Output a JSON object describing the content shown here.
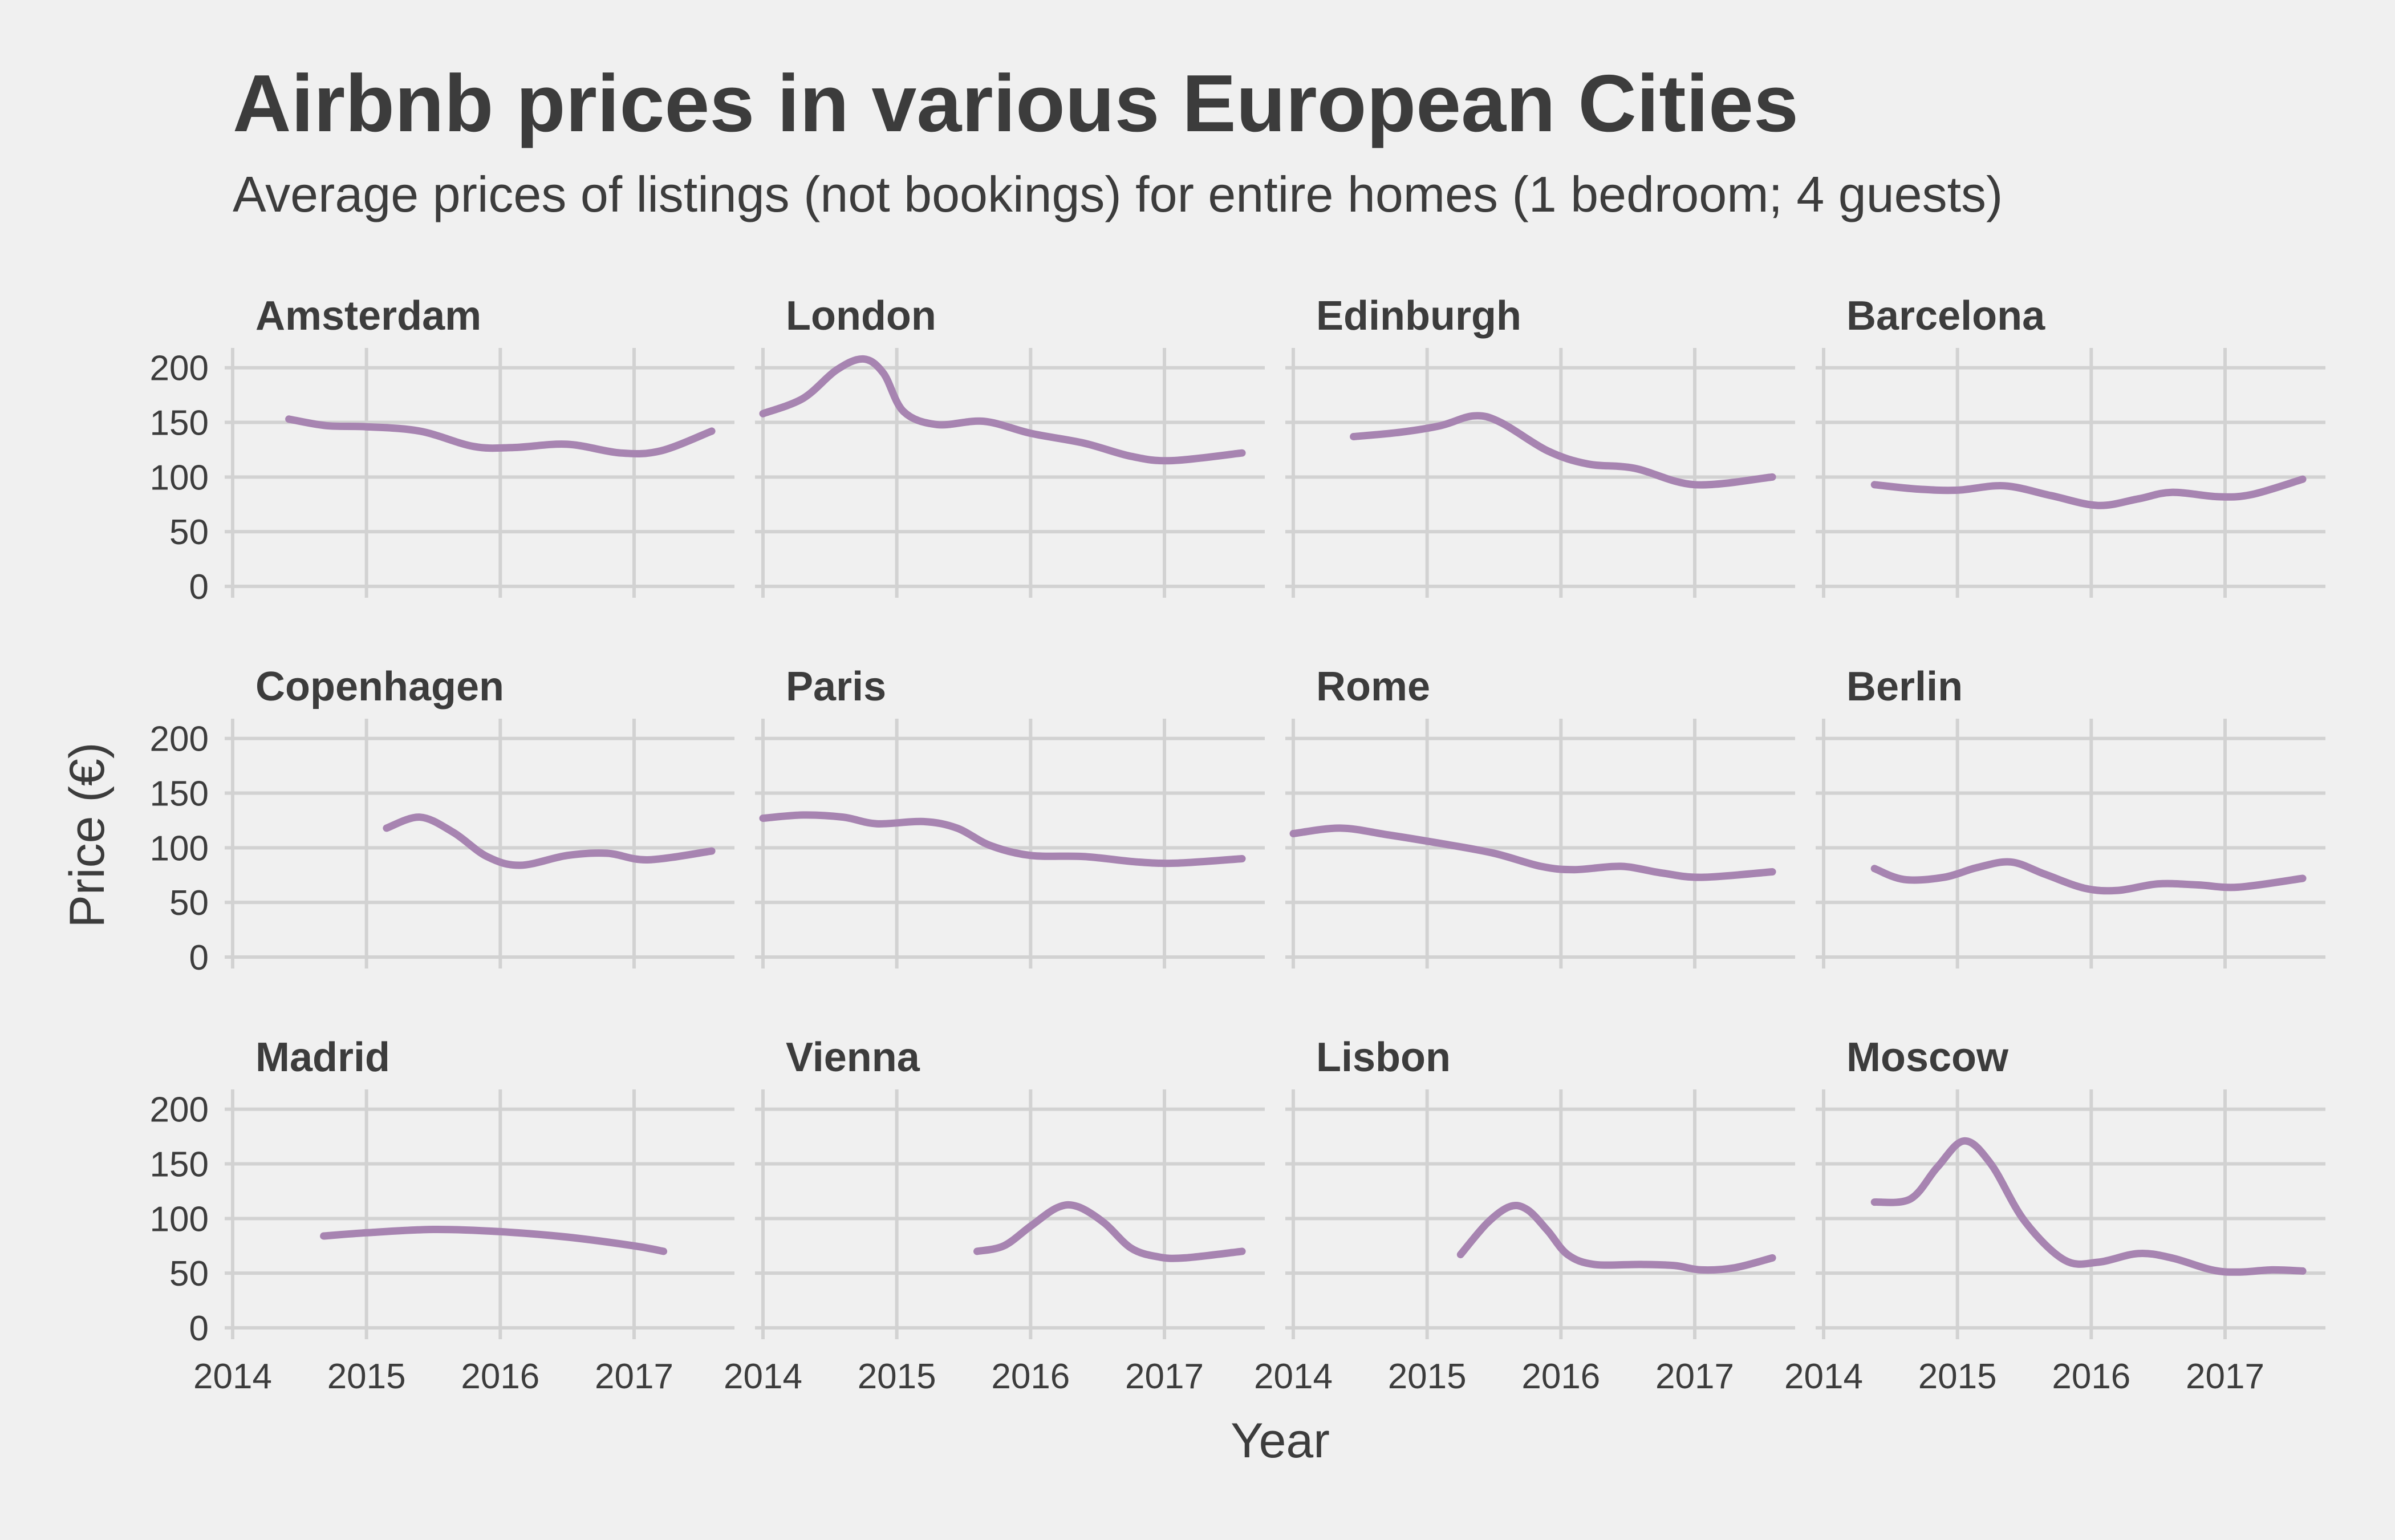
{
  "chart_data": {
    "type": "line",
    "title": "Airbnb prices in various European Cities",
    "subtitle": "Average prices of listings (not bookings) for entire homes (1 bedroom; 4 guests)",
    "xlabel": "Year",
    "ylabel": "Price (€)",
    "xlim": [
      2014,
      2017.75
    ],
    "ylim": [
      0,
      215
    ],
    "x_ticks": [
      2014,
      2015,
      2016,
      2017
    ],
    "y_ticks": [
      0,
      50,
      100,
      150,
      200
    ],
    "grid": true,
    "line_color": "#a784b1",
    "facets": [
      {
        "name": "Amsterdam",
        "x": [
          2014.42,
          2014.7,
          2015.0,
          2015.4,
          2015.8,
          2016.1,
          2016.5,
          2016.9,
          2017.2,
          2017.58
        ],
        "y": [
          153,
          147,
          146,
          142,
          128,
          127,
          130,
          122,
          124,
          142
        ]
      },
      {
        "name": "London",
        "x": [
          2014.0,
          2014.3,
          2014.55,
          2014.75,
          2014.9,
          2015.05,
          2015.3,
          2015.65,
          2016.0,
          2016.4,
          2016.75,
          2017.05,
          2017.58
        ],
        "y": [
          158,
          172,
          198,
          208,
          195,
          160,
          148,
          151,
          140,
          131,
          119,
          115,
          122
        ]
      },
      {
        "name": "Edinburgh",
        "x": [
          2014.45,
          2014.8,
          2015.1,
          2015.35,
          2015.55,
          2015.9,
          2016.2,
          2016.55,
          2017.0,
          2017.58
        ],
        "y": [
          137,
          141,
          147,
          156,
          150,
          124,
          112,
          108,
          93,
          100
        ]
      },
      {
        "name": "Barcelona",
        "x": [
          2014.38,
          2014.7,
          2015.0,
          2015.35,
          2015.7,
          2016.05,
          2016.35,
          2016.6,
          2016.95,
          2017.2,
          2017.58
        ],
        "y": [
          93,
          89,
          88,
          92,
          83,
          74,
          80,
          86,
          82,
          84,
          98
        ]
      },
      {
        "name": "Copenhagen",
        "x": [
          2015.15,
          2015.4,
          2015.65,
          2015.9,
          2016.15,
          2016.5,
          2016.8,
          2017.1,
          2017.58
        ],
        "y": [
          118,
          128,
          114,
          92,
          84,
          93,
          95,
          89,
          97
        ]
      },
      {
        "name": "Paris",
        "x": [
          2014.0,
          2014.3,
          2014.6,
          2014.85,
          2015.2,
          2015.45,
          2015.7,
          2016.0,
          2016.4,
          2016.8,
          2017.1,
          2017.58
        ],
        "y": [
          127,
          130,
          128,
          122,
          124,
          118,
          102,
          93,
          92,
          87,
          86,
          90
        ]
      },
      {
        "name": "Rome",
        "x": [
          2014.0,
          2014.35,
          2014.7,
          2015.1,
          2015.5,
          2015.85,
          2016.1,
          2016.45,
          2016.75,
          2017.05,
          2017.58
        ],
        "y": [
          113,
          118,
          112,
          104,
          95,
          83,
          80,
          83,
          77,
          73,
          78
        ]
      },
      {
        "name": "Berlin",
        "x": [
          2014.38,
          2014.6,
          2014.9,
          2015.15,
          2015.4,
          2015.65,
          2015.95,
          2016.2,
          2016.5,
          2016.8,
          2017.1,
          2017.58
        ],
        "y": [
          81,
          71,
          73,
          82,
          87,
          76,
          63,
          61,
          67,
          66,
          64,
          72
        ]
      },
      {
        "name": "Madrid",
        "x": [
          2014.68,
          2015.0,
          2015.5,
          2016.0,
          2016.5,
          2017.0,
          2017.22
        ],
        "y": [
          84,
          87,
          90,
          88,
          83,
          75,
          70
        ]
      },
      {
        "name": "Vienna",
        "x": [
          2015.6,
          2015.8,
          2016.0,
          2016.2,
          2016.35,
          2016.55,
          2016.75,
          2016.95,
          2017.15,
          2017.58
        ],
        "y": [
          70,
          75,
          93,
          110,
          111,
          96,
          73,
          65,
          64,
          70
        ]
      },
      {
        "name": "Lisbon",
        "x": [
          2015.25,
          2015.45,
          2015.62,
          2015.75,
          2015.9,
          2016.05,
          2016.25,
          2016.6,
          2016.85,
          2017.05,
          2017.3,
          2017.58
        ],
        "y": [
          67,
          96,
          111,
          108,
          89,
          67,
          58,
          58,
          57,
          53,
          55,
          64
        ]
      },
      {
        "name": "Moscow",
        "x": [
          2014.38,
          2014.65,
          2014.85,
          2015.05,
          2015.25,
          2015.5,
          2015.8,
          2016.05,
          2016.35,
          2016.6,
          2016.9,
          2017.1,
          2017.35,
          2017.58
        ],
        "y": [
          115,
          118,
          147,
          171,
          150,
          98,
          62,
          60,
          68,
          64,
          53,
          51,
          53,
          52
        ]
      }
    ]
  }
}
